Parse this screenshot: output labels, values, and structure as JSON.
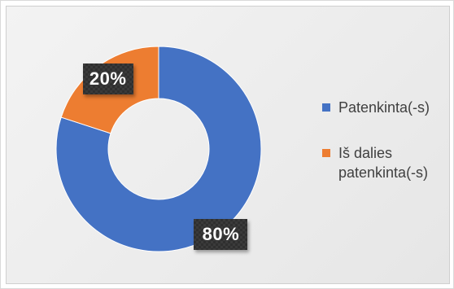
{
  "chart_data": {
    "type": "pie",
    "title": "",
    "donut": true,
    "categories": [
      "Patenkinta(-s)",
      "Iš dalies patenkinta(-s)"
    ],
    "values": [
      80,
      20
    ],
    "data_labels": [
      "80%",
      "20%"
    ],
    "colors": [
      "#4472c4",
      "#ed7d31"
    ],
    "legend": {
      "position": "right",
      "items": [
        {
          "label": "Patenkinta(-s)",
          "color": "#4472c4"
        },
        {
          "label": "Iš dalies patenkinta(-s)",
          "color": "#ed7d31"
        }
      ]
    }
  }
}
